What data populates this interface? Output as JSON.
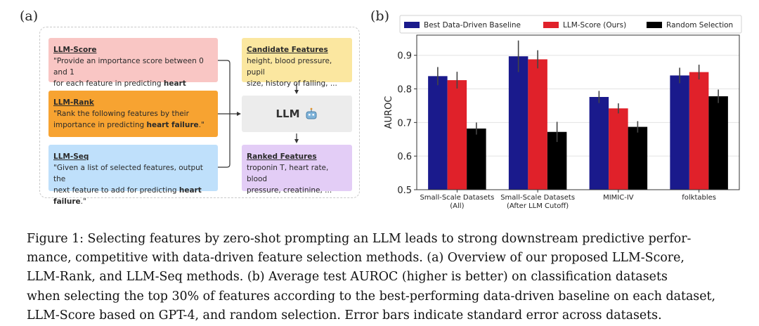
{
  "panel_a": {
    "label": "(a)",
    "llm_score": {
      "title": "LLM-Score",
      "text_1": "\"Provide an importance score between 0 and 1",
      "text_2": "for each feature in predicting ",
      "bold": "heart failure",
      "end": ".\""
    },
    "llm_rank": {
      "title": "LLM-Rank",
      "text_1": "\"Rank the following features by their",
      "text_2": "importance in predicting ",
      "bold": "heart failure",
      "end": ".\""
    },
    "llm_seq": {
      "title": "LLM-Seq",
      "text_1": "\"Given a list of selected features, output the",
      "text_2": "next feature to add for predicting ",
      "bold": "heart failure",
      "end": ".\""
    },
    "candidate": {
      "title": "Candidate Features",
      "text_1": "height, blood pressure, pupil",
      "text_2": "size, history of falling, ..."
    },
    "llm": {
      "label": "LLM",
      "icon": "robot-icon"
    },
    "ranked": {
      "title": "Ranked Features",
      "text_1": "troponin T, heart rate, blood",
      "text_2": "pressure, creatinine, ..."
    }
  },
  "panel_b": {
    "label": "(b)"
  },
  "chart_data": {
    "type": "bar",
    "title": "",
    "xlabel": "",
    "ylabel": "AUROC",
    "ylim": [
      0.5,
      0.96
    ],
    "yticks": [
      "0.5",
      "0.6",
      "0.7",
      "0.8",
      "0.9"
    ],
    "categories": [
      [
        "Small-Scale Datasets",
        "(All)"
      ],
      [
        "Small-Scale Datasets",
        "(After LLM Cutoff)"
      ],
      [
        "MIMIC-IV"
      ],
      [
        "folktables"
      ]
    ],
    "series": [
      {
        "name": "Best Data-Driven Baseline",
        "color": "#1a1a8c",
        "values": [
          0.838,
          0.897,
          0.776,
          0.84
        ],
        "errors": [
          0.027,
          0.047,
          0.018,
          0.023
        ]
      },
      {
        "name": "LLM-Score (Ours)",
        "color": "#e0212a",
        "values": [
          0.826,
          0.888,
          0.742,
          0.85
        ],
        "errors": [
          0.025,
          0.027,
          0.015,
          0.022
        ]
      },
      {
        "name": "Random Selection",
        "color": "#000000",
        "values": [
          0.682,
          0.672,
          0.687,
          0.778
        ],
        "errors": [
          0.018,
          0.03,
          0.017,
          0.02
        ]
      }
    ],
    "grid": true,
    "legend": "top"
  },
  "caption": {
    "line1": "Figure 1: Selecting features by zero-shot prompting an LLM leads to strong downstream predictive perfor-",
    "line2": "mance, competitive with data-driven feature selection methods. (a) Overview of our proposed LLM-Score,",
    "line3": "LLM-Rank, and LLM-Seq methods. (b) Average test AUROC (higher is better) on classification datasets",
    "line4": "when selecting the top 30% of features according to the best-performing data-driven baseline on each dataset,",
    "line5": "LLM-Score based on GPT-4, and random selection. Error bars indicate standard error across datasets."
  }
}
